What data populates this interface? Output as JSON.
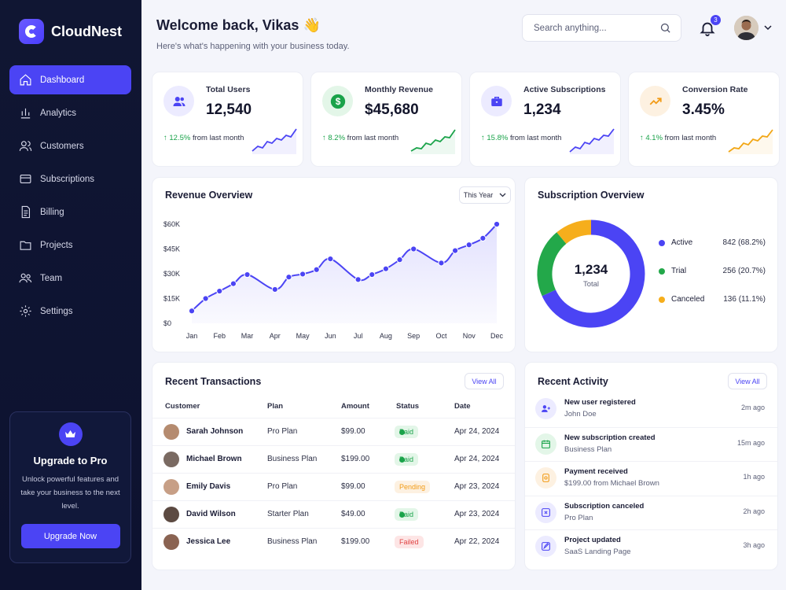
{
  "brand": {
    "name": "CloudNest"
  },
  "sidebar": {
    "items": [
      {
        "label": "Dashboard",
        "icon": "home-icon"
      },
      {
        "label": "Analytics",
        "icon": "bar-chart-icon"
      },
      {
        "label": "Customers",
        "icon": "users-icon"
      },
      {
        "label": "Subscriptions",
        "icon": "card-icon"
      },
      {
        "label": "Billing",
        "icon": "document-icon"
      },
      {
        "label": "Projects",
        "icon": "folder-icon"
      },
      {
        "label": "Team",
        "icon": "team-icon"
      },
      {
        "label": "Settings",
        "icon": "gear-icon"
      }
    ],
    "upgrade": {
      "title": "Upgrade to Pro",
      "line1": "Unlock powerful features and",
      "line2": "take your business to the next",
      "line3": "level.",
      "button": "Upgrade Now"
    }
  },
  "header": {
    "welcome": "Welcome back, Vikas 👋",
    "subtitle": "Here's what's happening with your business today.",
    "search_placeholder": "Search anything...",
    "notification_count": "3"
  },
  "stats": [
    {
      "label": "Total Users",
      "value": "12,540",
      "change": "↑ 12.5%",
      "change_suffix": " from last month",
      "color": "#4b44f4"
    },
    {
      "label": "Monthly Revenue",
      "value": "$45,680",
      "change": "↑ 8.2%",
      "change_suffix": " from last month",
      "color": "#1aa34a"
    },
    {
      "label": "Active Subscriptions",
      "value": "1,234",
      "change": "↑ 15.8%",
      "change_suffix": " from last month",
      "color": "#4b44f4"
    },
    {
      "label": "Conversion Rate",
      "value": "3.45%",
      "change": "↑ 4.1%",
      "change_suffix": " from last month",
      "color": "#f2a614"
    }
  ],
  "revenue": {
    "title": "Revenue Overview",
    "filter": "This Year",
    "y_ticks": [
      "$60K",
      "$45K",
      "$30K",
      "$15K",
      "$0"
    ],
    "months": [
      "Jan",
      "Feb",
      "Mar",
      "Apr",
      "May",
      "Jun",
      "Jul",
      "Aug",
      "Sep",
      "Oct",
      "Nov",
      "Dec"
    ]
  },
  "subscription": {
    "title": "Subscription Overview",
    "total": "1,234",
    "total_label": "Total",
    "legend": [
      {
        "name": "Active",
        "value": "842 (68.2%)",
        "color": "#4b44f4"
      },
      {
        "name": "Trial",
        "value": "256 (20.7%)",
        "color": "#23a84a"
      },
      {
        "name": "Canceled",
        "value": "136 (11.1%)",
        "color": "#f6ae1c"
      }
    ]
  },
  "transactions": {
    "title": "Recent Transactions",
    "view_all": "View All",
    "columns": [
      "Customer",
      "Plan",
      "Amount",
      "Status",
      "Date"
    ],
    "rows": [
      {
        "customer": "Sarah Johnson",
        "plan": "Pro Plan",
        "amount": "$99.00",
        "status": "Paid",
        "date": "Apr 24, 2024"
      },
      {
        "customer": "Michael Brown",
        "plan": "Business Plan",
        "amount": "$199.00",
        "status": "Paid",
        "date": "Apr 24, 2024"
      },
      {
        "customer": "Emily Davis",
        "plan": "Pro Plan",
        "amount": "$99.00",
        "status": "Pending",
        "date": "Apr 23, 2024"
      },
      {
        "customer": "David Wilson",
        "plan": "Starter Plan",
        "amount": "$49.00",
        "status": "Paid",
        "date": "Apr 23, 2024"
      },
      {
        "customer": "Jessica Lee",
        "plan": "Business Plan",
        "amount": "$199.00",
        "status": "Failed",
        "date": "Apr 22, 2024"
      }
    ]
  },
  "activity": {
    "title": "Recent Activity",
    "view_all": "View All",
    "items": [
      {
        "title": "New user registered",
        "detail": "John Doe",
        "time": "2m ago",
        "icon": "user-plus-icon"
      },
      {
        "title": "New subscription created",
        "detail": "Business Plan",
        "time": "15m ago",
        "icon": "calendar-icon"
      },
      {
        "title": "Payment received",
        "detail": "$199.00 from Michael Brown",
        "time": "1h ago",
        "icon": "coin-icon"
      },
      {
        "title": "Subscription canceled",
        "detail": "Pro Plan",
        "time": "2h ago",
        "icon": "cancel-icon"
      },
      {
        "title": "Project updated",
        "detail": "SaaS Landing Page",
        "time": "3h ago",
        "icon": "edit-icon"
      }
    ]
  },
  "chart_data": [
    {
      "type": "area",
      "title": "Revenue Overview",
      "x": [
        "Jan",
        "Feb",
        "Mar",
        "Apr",
        "May",
        "Jun",
        "Jul",
        "Aug",
        "Sep",
        "Oct",
        "Nov",
        "Dec"
      ],
      "y_ticks": [
        "$60K",
        "$45K",
        "$30K",
        "$15K",
        "$0"
      ],
      "ylim": [
        0,
        60000
      ],
      "points": [
        [
          "Jan",
          7500
        ],
        [
          "Jan-Feb",
          15000
        ],
        [
          "Feb",
          19500
        ],
        [
          "Feb-Mar",
          24000
        ],
        [
          "Mar",
          29500
        ],
        [
          "Apr",
          20500
        ],
        [
          "Apr-May",
          28000
        ],
        [
          "May",
          29800
        ],
        [
          "May-Jun",
          32500
        ],
        [
          "Jun",
          39000
        ],
        [
          "Jul",
          26500
        ],
        [
          "Jul-Aug",
          29500
        ],
        [
          "Aug",
          33000
        ],
        [
          "Aug-Sep",
          38500
        ],
        [
          "Sep",
          45000
        ],
        [
          "Oct",
          36500
        ],
        [
          "Oct-Nov",
          44000
        ],
        [
          "Nov",
          47500
        ],
        [
          "Nov-Dec",
          51500
        ],
        [
          "Dec",
          60000
        ]
      ],
      "color": "#4b44f4"
    },
    {
      "type": "pie",
      "title": "Subscription Overview",
      "categories": [
        "Active",
        "Trial",
        "Canceled"
      ],
      "values": [
        842,
        256,
        136
      ],
      "colors": [
        "#4b44f4",
        "#23a84a",
        "#f6ae1c"
      ]
    }
  ]
}
